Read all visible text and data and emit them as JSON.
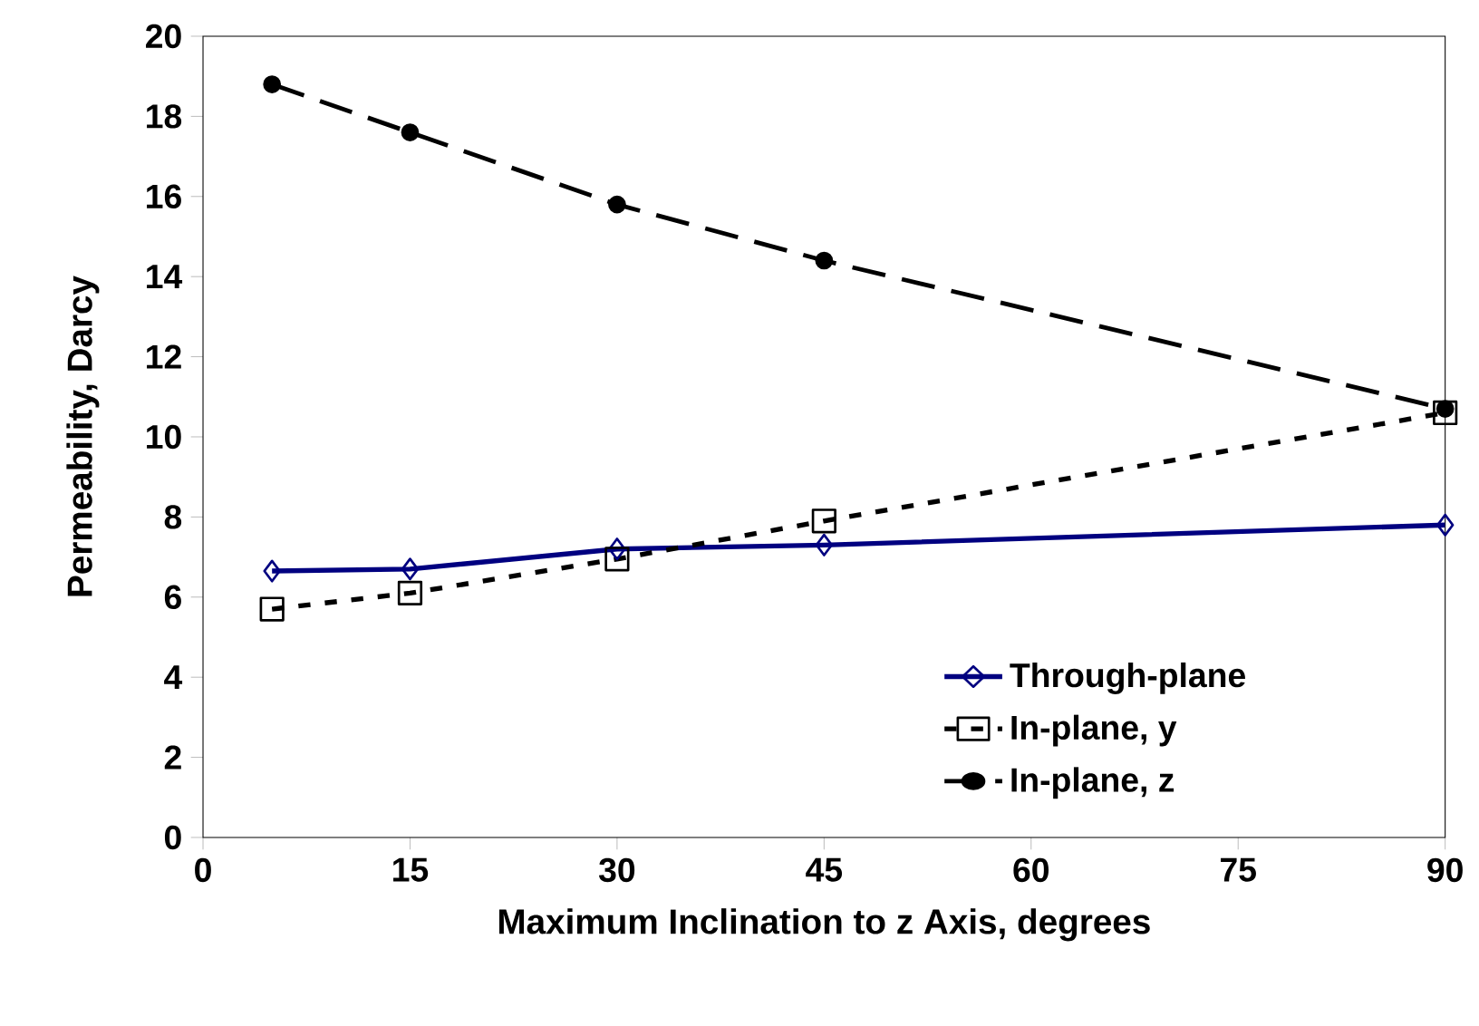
{
  "chart_data": {
    "type": "line",
    "xlabel": "Maximum Inclination to z Axis, degrees",
    "ylabel": "Permeability, Darcy",
    "x": [
      5,
      15,
      30,
      45,
      90
    ],
    "series": [
      {
        "name": "Through-plane",
        "color": "#000080",
        "values": [
          6.65,
          6.7,
          7.2,
          7.3,
          7.8
        ],
        "marker": "diamond",
        "line_style": "solid"
      },
      {
        "name": "In-plane, y",
        "color": "#000000",
        "values": [
          5.7,
          6.1,
          6.95,
          7.9,
          10.6
        ],
        "marker": "square",
        "line_style": "dotted"
      },
      {
        "name": "In-plane, z",
        "color": "#000000",
        "values": [
          18.8,
          17.6,
          15.8,
          14.4,
          10.7
        ],
        "marker": "circle",
        "line_style": "dashed"
      }
    ],
    "xlim": [
      0,
      90
    ],
    "xticks": [
      0,
      15,
      30,
      45,
      60,
      75,
      90
    ],
    "ylim": [
      0,
      20
    ],
    "yticks": [
      0,
      2,
      4,
      6,
      8,
      10,
      12,
      14,
      16,
      18,
      20
    ],
    "grid": false,
    "legend": "bottom right"
  }
}
